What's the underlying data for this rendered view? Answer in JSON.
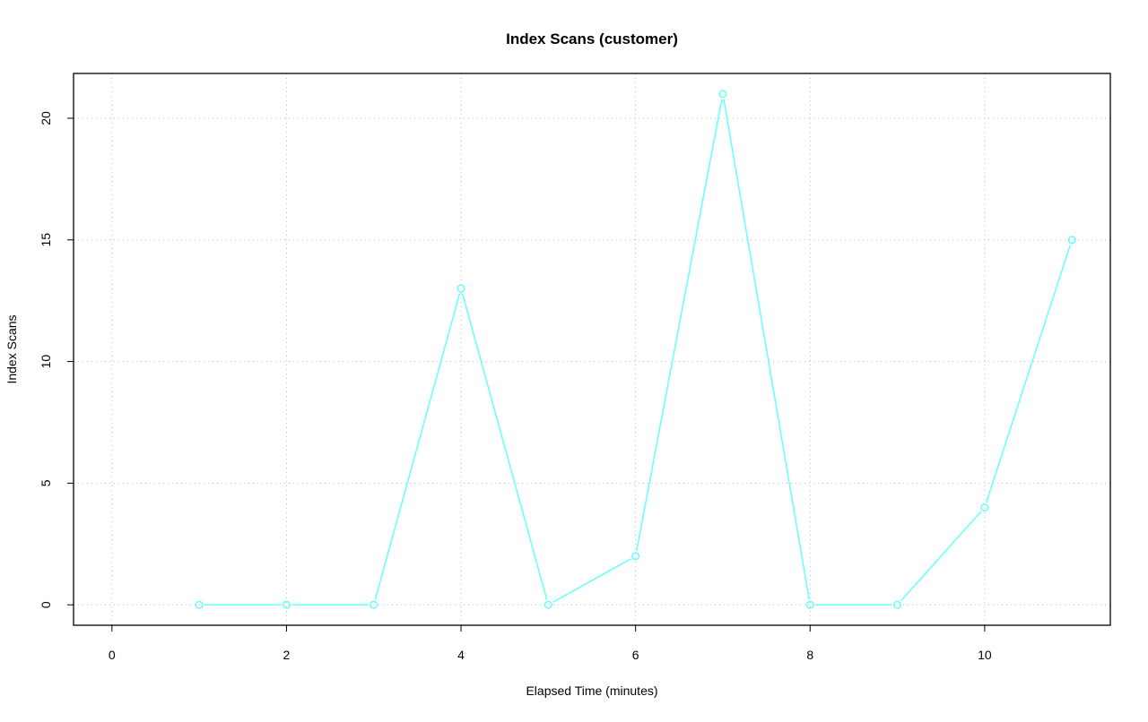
{
  "chart_data": {
    "type": "line",
    "title": "Index Scans (customer)",
    "xlabel": "Elapsed Time (minutes)",
    "ylabel": "Index Scans",
    "x": [
      1,
      2,
      3,
      4,
      5,
      6,
      7,
      8,
      9,
      10,
      11
    ],
    "series": [
      {
        "values": [
          0,
          0,
          0,
          13,
          0,
          2,
          21,
          0,
          0,
          4,
          15
        ],
        "color": "#66ffff"
      }
    ],
    "xticks": [
      0,
      2,
      4,
      6,
      8,
      10
    ],
    "yticks": [
      0,
      5,
      10,
      15,
      20
    ],
    "xlim": [
      -0.44,
      11.44
    ],
    "ylim": [
      -0.84,
      21.84
    ],
    "grid": true,
    "markers": "open-circle"
  }
}
